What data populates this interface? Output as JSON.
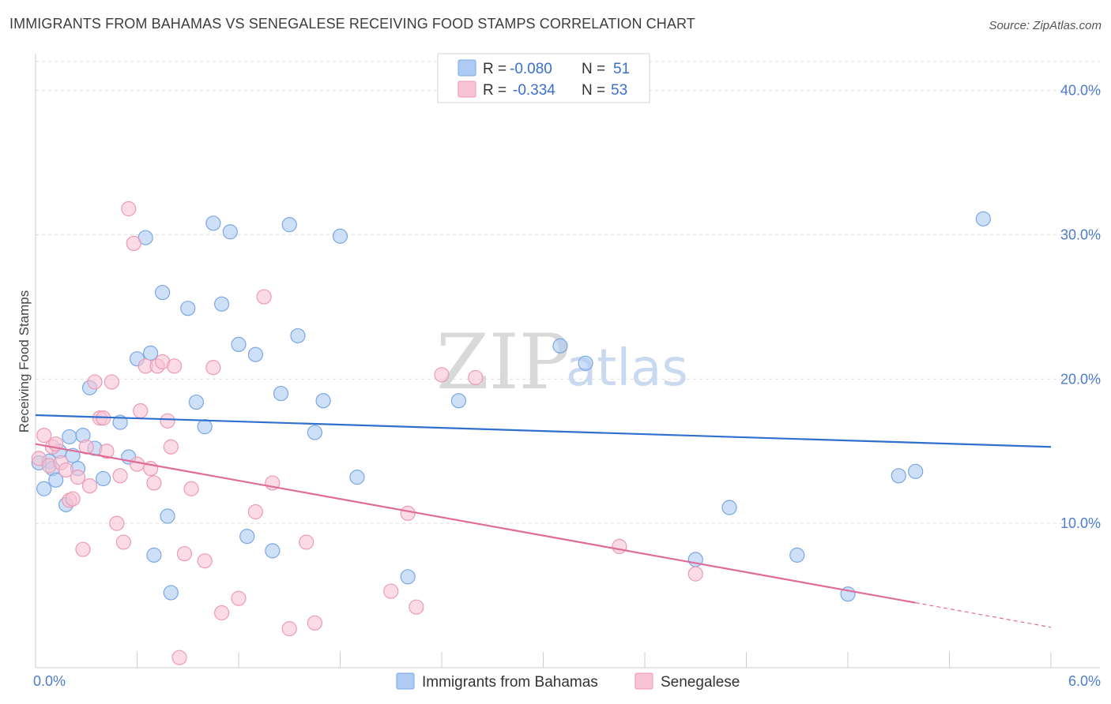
{
  "title": "IMMIGRANTS FROM BAHAMAS VS SENEGALESE RECEIVING FOOD STAMPS CORRELATION CHART",
  "source": "Source: ZipAtlas.com",
  "watermark": {
    "zip": "ZIP",
    "atlas": "atlas"
  },
  "colors": {
    "blue_fill": "#aecbf3",
    "blue_stroke": "#7aa7e2",
    "blue_line": "#2f6fce",
    "pink_fill": "#f8c3d4",
    "pink_stroke": "#ec9ab5",
    "pink_line": "#e06b98",
    "grid": "#dcdcdc",
    "axis_text": "#4d7cc9"
  },
  "legend": {
    "rows": [
      {
        "r_label": "R = ",
        "r_value": "-0.080",
        "n_label": "N = ",
        "n_value": "51",
        "series": "blue"
      },
      {
        "r_label": "R = ",
        "r_value": "-0.334",
        "n_label": "N = ",
        "n_value": "53",
        "series": "pink"
      }
    ]
  },
  "chart_data": {
    "type": "scatter",
    "title": "IMMIGRANTS FROM BAHAMAS VS SENEGALESE RECEIVING FOOD STAMPS CORRELATION CHART",
    "xlabel": "",
    "ylabel": "Receiving Food Stamps",
    "xlim": [
      0,
      6
    ],
    "ylim": [
      0,
      42
    ],
    "x_tick_labels": [
      "0.0%",
      "6.0%"
    ],
    "y_ticks": [
      10,
      20,
      30,
      40
    ],
    "y_tick_labels": [
      "10.0%",
      "20.0%",
      "30.0%",
      "40.0%"
    ],
    "legend_position": "top-center",
    "series": [
      {
        "name": "Immigrants from Bahamas",
        "color": "blue",
        "trend": {
          "x0": 0,
          "y0": 17.5,
          "x1": 6.0,
          "y1": 15.3
        },
        "points": [
          [
            0.02,
            14.2
          ],
          [
            0.05,
            12.4
          ],
          [
            0.08,
            14.3
          ],
          [
            0.1,
            13.8
          ],
          [
            0.12,
            13.0
          ],
          [
            0.14,
            15.0
          ],
          [
            0.18,
            11.3
          ],
          [
            0.2,
            16.0
          ],
          [
            0.22,
            14.7
          ],
          [
            0.25,
            13.8
          ],
          [
            0.28,
            16.1
          ],
          [
            0.32,
            19.4
          ],
          [
            0.35,
            15.2
          ],
          [
            0.4,
            13.1
          ],
          [
            0.5,
            17.0
          ],
          [
            0.55,
            14.6
          ],
          [
            0.6,
            21.4
          ],
          [
            0.65,
            29.8
          ],
          [
            0.68,
            21.8
          ],
          [
            0.7,
            7.8
          ],
          [
            0.75,
            26.0
          ],
          [
            0.78,
            10.5
          ],
          [
            0.8,
            5.2
          ],
          [
            0.9,
            24.9
          ],
          [
            0.95,
            18.4
          ],
          [
            1.0,
            16.7
          ],
          [
            1.05,
            30.8
          ],
          [
            1.1,
            25.2
          ],
          [
            1.15,
            30.2
          ],
          [
            1.2,
            22.4
          ],
          [
            1.25,
            9.1
          ],
          [
            1.3,
            21.7
          ],
          [
            1.4,
            8.1
          ],
          [
            1.45,
            19.0
          ],
          [
            1.5,
            30.7
          ],
          [
            1.55,
            23.0
          ],
          [
            1.65,
            16.3
          ],
          [
            1.7,
            18.5
          ],
          [
            1.8,
            29.9
          ],
          [
            1.9,
            13.2
          ],
          [
            2.2,
            6.3
          ],
          [
            2.5,
            18.5
          ],
          [
            3.1,
            22.3
          ],
          [
            3.25,
            21.1
          ],
          [
            3.9,
            7.5
          ],
          [
            4.1,
            11.1
          ],
          [
            4.5,
            7.8
          ],
          [
            4.8,
            5.1
          ],
          [
            5.1,
            13.3
          ],
          [
            5.2,
            13.6
          ],
          [
            5.6,
            31.1
          ]
        ]
      },
      {
        "name": "Senegalese",
        "color": "pink",
        "trend": {
          "x0": 0,
          "y0": 15.5,
          "x1": 5.2,
          "y1": 4.5,
          "dash_x1": 6.0,
          "dash_y1": 2.8
        },
        "points": [
          [
            0.02,
            14.5
          ],
          [
            0.05,
            16.1
          ],
          [
            0.08,
            14.0
          ],
          [
            0.1,
            15.3
          ],
          [
            0.12,
            15.5
          ],
          [
            0.15,
            14.2
          ],
          [
            0.18,
            13.7
          ],
          [
            0.2,
            11.6
          ],
          [
            0.22,
            11.7
          ],
          [
            0.25,
            13.2
          ],
          [
            0.28,
            8.2
          ],
          [
            0.3,
            15.3
          ],
          [
            0.32,
            12.6
          ],
          [
            0.35,
            19.8
          ],
          [
            0.38,
            17.3
          ],
          [
            0.4,
            17.3
          ],
          [
            0.42,
            15.0
          ],
          [
            0.45,
            19.8
          ],
          [
            0.48,
            10.0
          ],
          [
            0.5,
            13.3
          ],
          [
            0.52,
            8.7
          ],
          [
            0.55,
            31.8
          ],
          [
            0.58,
            29.4
          ],
          [
            0.6,
            14.1
          ],
          [
            0.62,
            17.8
          ],
          [
            0.65,
            20.9
          ],
          [
            0.68,
            13.8
          ],
          [
            0.7,
            12.8
          ],
          [
            0.72,
            20.9
          ],
          [
            0.75,
            21.2
          ],
          [
            0.78,
            17.1
          ],
          [
            0.8,
            15.3
          ],
          [
            0.82,
            20.9
          ],
          [
            0.85,
            0.7
          ],
          [
            0.88,
            7.9
          ],
          [
            0.92,
            12.4
          ],
          [
            1.0,
            7.4
          ],
          [
            1.05,
            20.8
          ],
          [
            1.1,
            3.8
          ],
          [
            1.2,
            4.8
          ],
          [
            1.3,
            10.8
          ],
          [
            1.35,
            25.7
          ],
          [
            1.4,
            12.8
          ],
          [
            1.5,
            2.7
          ],
          [
            1.6,
            8.7
          ],
          [
            1.65,
            3.1
          ],
          [
            2.1,
            5.3
          ],
          [
            2.2,
            10.7
          ],
          [
            2.25,
            4.2
          ],
          [
            2.4,
            20.3
          ],
          [
            2.6,
            20.1
          ],
          [
            3.45,
            8.4
          ],
          [
            3.9,
            6.5
          ]
        ]
      }
    ]
  },
  "bottom_legend": [
    {
      "label": "Immigrants from Bahamas",
      "color": "blue"
    },
    {
      "label": "Senegalese",
      "color": "pink"
    }
  ]
}
